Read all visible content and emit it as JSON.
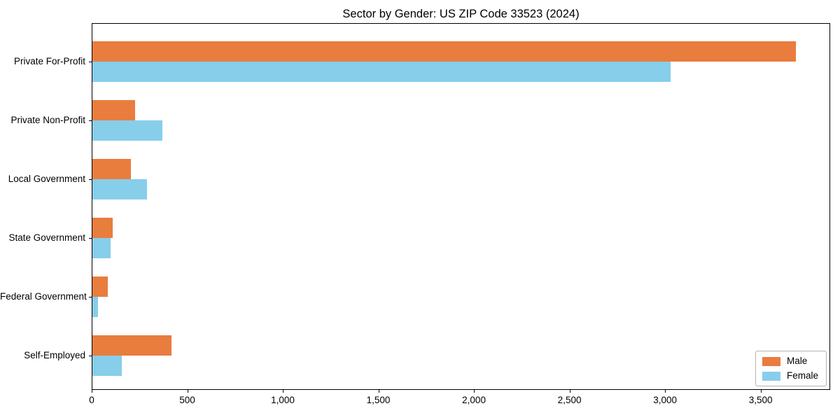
{
  "title": "Sector by Gender: US ZIP Code 33523 (2024)",
  "chart_data": {
    "type": "bar",
    "orientation": "horizontal",
    "title": "Sector by Gender: US ZIP Code 33523 (2024)",
    "xlabel": "",
    "ylabel": "",
    "categories": [
      "Private For-Profit",
      "Private Non-Profit",
      "Local Government",
      "State Government",
      "Federal Government",
      "Self-Employed"
    ],
    "series": [
      {
        "name": "Male",
        "color": "#e87d3e",
        "values": [
          3680,
          225,
          200,
          105,
          80,
          415
        ]
      },
      {
        "name": "Female",
        "color": "#87ceeb",
        "values": [
          3025,
          365,
          285,
          95,
          30,
          155
        ]
      }
    ],
    "xlim": [
      0,
      3864
    ],
    "xticks": [
      0,
      500,
      1000,
      1500,
      2000,
      2500,
      3000,
      3500
    ],
    "xtick_labels": [
      "0",
      "500",
      "1,000",
      "1,500",
      "2,000",
      "2,500",
      "3,000",
      "3,500"
    ],
    "grid": false,
    "legend": {
      "position": "lower right"
    }
  }
}
